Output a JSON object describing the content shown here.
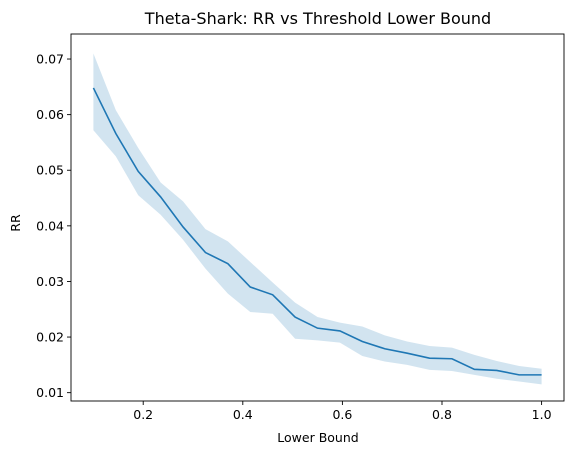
{
  "chart_data": {
    "type": "line",
    "title": "Theta-Shark: RR vs Threshold Lower Bound",
    "xlabel": "Lower Bound",
    "ylabel": "RR",
    "xlim": [
      0.055,
      1.045
    ],
    "ylim": [
      0.0085,
      0.0745
    ],
    "xticks": [
      0.2,
      0.4,
      0.6,
      0.8,
      1.0
    ],
    "xtick_labels": [
      "0.2",
      "0.4",
      "0.6",
      "0.8",
      "1.0"
    ],
    "yticks": [
      0.01,
      0.02,
      0.03,
      0.04,
      0.05,
      0.06,
      0.07
    ],
    "ytick_labels": [
      "0.01",
      "0.02",
      "0.03",
      "0.04",
      "0.05",
      "0.06",
      "0.07"
    ],
    "grid": false,
    "legend": "none",
    "colors": {
      "line": "#1f77b4",
      "band": "#1f77b4"
    },
    "series": [
      {
        "x": [
          0.1,
          0.145,
          0.19,
          0.235,
          0.28,
          0.325,
          0.37,
          0.415,
          0.46,
          0.505,
          0.55,
          0.595,
          0.64,
          0.685,
          0.73,
          0.775,
          0.82,
          0.865,
          0.91,
          0.955,
          1.0
        ],
        "y": [
          0.0648,
          0.0566,
          0.0498,
          0.0452,
          0.0398,
          0.0352,
          0.0332,
          0.029,
          0.0276,
          0.0236,
          0.0216,
          0.0211,
          0.0192,
          0.0179,
          0.0171,
          0.0162,
          0.0161,
          0.0142,
          0.014,
          0.0132,
          0.0132
        ],
        "y_lower": [
          0.0572,
          0.0525,
          0.0455,
          0.042,
          0.0375,
          0.0323,
          0.0278,
          0.0245,
          0.0242,
          0.0197,
          0.0194,
          0.019,
          0.0166,
          0.0156,
          0.015,
          0.0141,
          0.0139,
          0.0132,
          0.0125,
          0.012,
          0.0115
        ],
        "y_upper": [
          0.071,
          0.0608,
          0.054,
          0.0478,
          0.0444,
          0.0394,
          0.0372,
          0.0335,
          0.0298,
          0.0262,
          0.0236,
          0.0226,
          0.0219,
          0.0203,
          0.0192,
          0.0184,
          0.0181,
          0.0168,
          0.0157,
          0.0148,
          0.0143
        ]
      }
    ]
  }
}
